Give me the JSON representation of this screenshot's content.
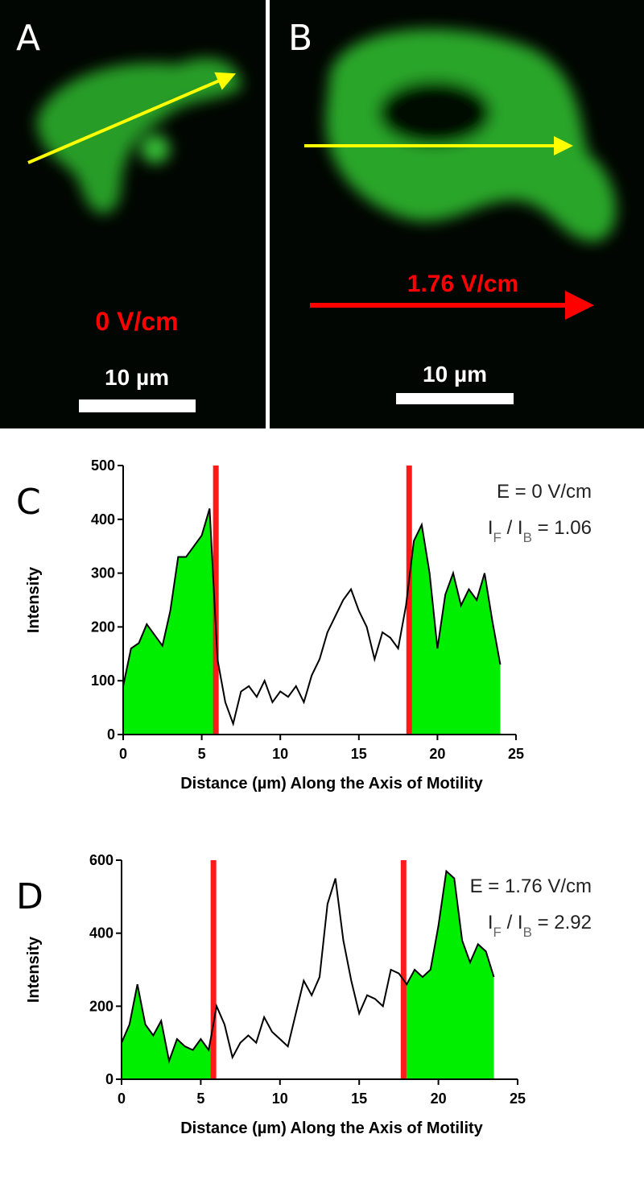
{
  "panels": [
    {
      "label": "A",
      "field": "0 V/cm",
      "scale": "10 µm"
    },
    {
      "label": "B",
      "field": "1.76 V/cm",
      "scale": "10 µm"
    }
  ],
  "chart_data": [
    {
      "type": "line",
      "panel": "C",
      "xlabel": "Distance (µm) Along the Axis of Motility",
      "ylabel": "Intensity",
      "field_label": "E = 0 V/cm",
      "ratio_label": [
        {
          "text": "I"
        },
        {
          "text": "F",
          "sub": true
        },
        {
          "text": " / I"
        },
        {
          "text": "B",
          "sub": true
        },
        {
          "text": " = 1.06"
        }
      ],
      "xlim": [
        0,
        25
      ],
      "xticks": [
        0,
        5,
        10,
        15,
        20,
        25
      ],
      "ylim": [
        0,
        500
      ],
      "yticks": [
        0,
        100,
        200,
        300,
        400,
        500
      ],
      "markers": [
        5.9,
        18.2
      ],
      "marker_color": "#ff1a1a",
      "fill_color": "#00ee00",
      "color": "#000000",
      "x": [
        0,
        0.5,
        1,
        1.5,
        2,
        2.5,
        3,
        3.5,
        4,
        4.5,
        5,
        5.5,
        6,
        6.5,
        7,
        7.5,
        8,
        8.5,
        9,
        9.5,
        10,
        10.5,
        11,
        11.5,
        12,
        12.5,
        13,
        13.5,
        14,
        14.5,
        15,
        15.5,
        16,
        16.5,
        17,
        17.5,
        18,
        18.5,
        19,
        19.5,
        20,
        20.5,
        21,
        21.5,
        22,
        22.5,
        23,
        23.5,
        24
      ],
      "values": [
        90,
        160,
        170,
        205,
        185,
        165,
        230,
        330,
        330,
        350,
        370,
        420,
        140,
        60,
        20,
        80,
        90,
        70,
        100,
        60,
        80,
        70,
        90,
        60,
        110,
        140,
        190,
        220,
        250,
        270,
        230,
        200,
        140,
        190,
        180,
        160,
        240,
        360,
        390,
        300,
        160,
        260,
        300,
        240,
        270,
        250,
        300,
        210,
        130
      ]
    },
    {
      "type": "line",
      "panel": "D",
      "xlabel": "Distance (µm) Along the Axis of Motility",
      "ylabel": "Intensity",
      "field_label": "E = 1.76 V/cm",
      "ratio_label": [
        {
          "text": "I"
        },
        {
          "text": "F",
          "sub": true
        },
        {
          "text": " / I"
        },
        {
          "text": "B",
          "sub": true
        },
        {
          "text": " = 2.92"
        }
      ],
      "xlim": [
        0,
        25
      ],
      "xticks": [
        0,
        5,
        10,
        15,
        20,
        25
      ],
      "ylim": [
        0,
        600
      ],
      "yticks": [
        0,
        200,
        400,
        600
      ],
      "markers": [
        5.8,
        17.8
      ],
      "marker_color": "#ff1a1a",
      "fill_color": "#00ee00",
      "color": "#000000",
      "x": [
        0,
        0.5,
        1,
        1.5,
        2,
        2.5,
        3,
        3.5,
        4,
        4.5,
        5,
        5.5,
        6,
        6.5,
        7,
        7.5,
        8,
        8.5,
        9,
        9.5,
        10,
        10.5,
        11,
        11.5,
        12,
        12.5,
        13,
        13.5,
        14,
        14.5,
        15,
        15.5,
        16,
        16.5,
        17,
        17.5,
        18,
        18.5,
        19,
        19.5,
        20,
        20.5,
        21,
        21.5,
        22,
        22.5,
        23,
        23.5
      ],
      "values": [
        100,
        150,
        260,
        150,
        120,
        160,
        50,
        110,
        90,
        80,
        110,
        80,
        200,
        150,
        60,
        100,
        120,
        100,
        170,
        130,
        110,
        90,
        180,
        270,
        230,
        280,
        480,
        550,
        380,
        270,
        180,
        230,
        220,
        200,
        300,
        290,
        260,
        300,
        280,
        300,
        420,
        570,
        550,
        380,
        320,
        370,
        350,
        280
      ]
    }
  ]
}
